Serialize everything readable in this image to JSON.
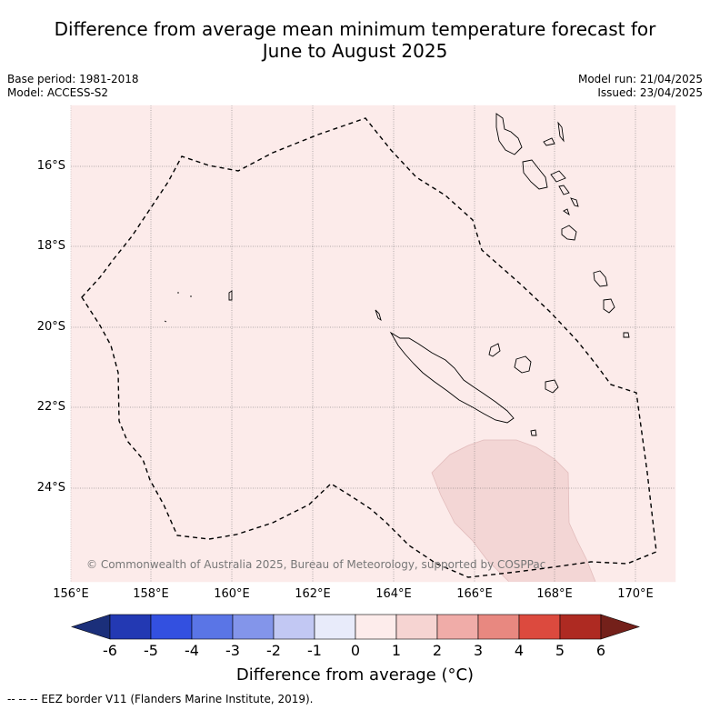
{
  "title_line1": "Difference from average mean minimum temperature forecast for",
  "title_line2": "June to August 2025",
  "base_period": "Base period: 1981-2018",
  "model": "Model: ACCESS-S2",
  "model_run": "Model run: 21/04/2025",
  "issued": "Issued: 23/04/2025",
  "copyright": "© Commonwealth of Australia 2025, Bureau of Meteorology, supported by COSPPac",
  "footer": "--  --  -- EEZ border V11 (Flanders Marine Institute, 2019).",
  "colorbar": {
    "title": "Difference from average (°C)",
    "labels": [
      "-6",
      "-5",
      "-4",
      "-3",
      "-2",
      "-1",
      "0",
      "1",
      "2",
      "3",
      "4",
      "5",
      "6"
    ],
    "colors": [
      "#1b2f7a",
      "#2339b3",
      "#3350e0",
      "#5a75e6",
      "#8395ea",
      "#c2c8f3",
      "#e8ebfa",
      "#fdeceb",
      "#f6d4d2",
      "#f0aca8",
      "#e88880",
      "#dc4a3e",
      "#ae2a22",
      "#74201a"
    ]
  },
  "map": {
    "lat_labels": [
      "16°S",
      "18°S",
      "20°S",
      "22°S",
      "24°S"
    ],
    "lon_labels": [
      "156°E",
      "158°E",
      "160°E",
      "162°E",
      "164°E",
      "166°E",
      "168°E",
      "170°E"
    ],
    "background_class": "0 to 1",
    "anomaly_patch_class": "1 to 2",
    "background_color": "#fcebea",
    "patch_color": "#f3d6d5"
  }
}
